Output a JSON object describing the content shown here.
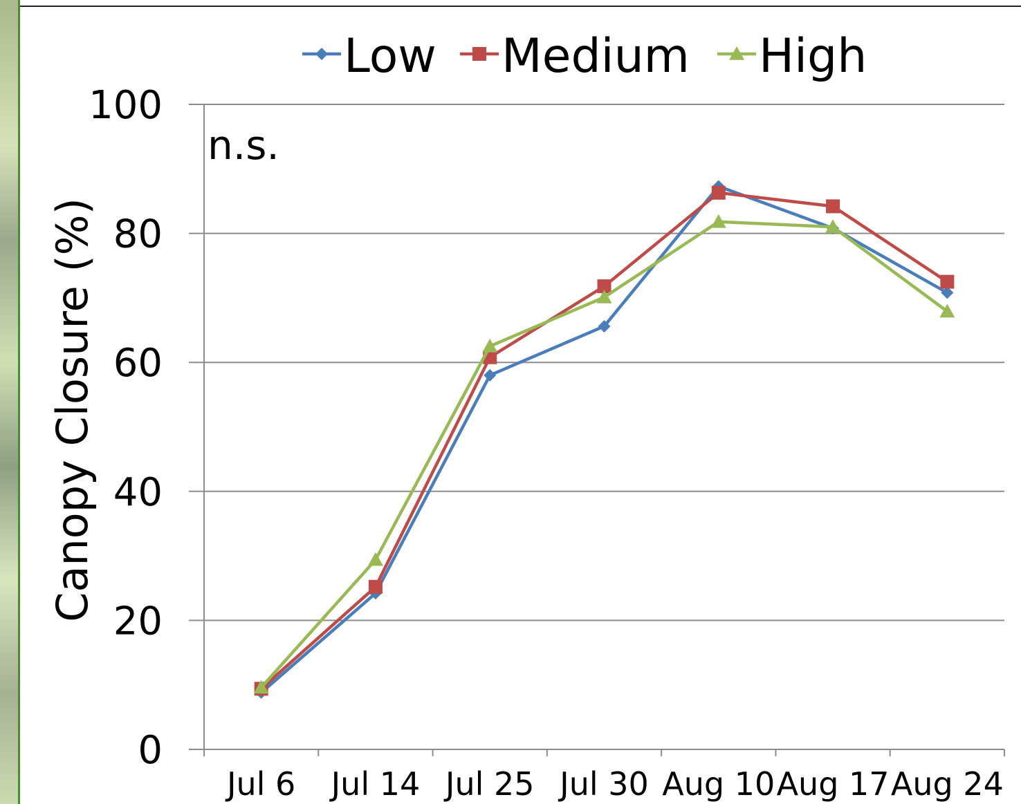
{
  "chart_data": {
    "type": "line",
    "categories": [
      "Jul 6",
      "Jul 14",
      "Jul 25",
      "Jul 30",
      "Aug 10",
      "Aug 17",
      "Aug 24"
    ],
    "series": [
      {
        "name": "Low",
        "color": "#4a7ebb",
        "marker": "diamond",
        "values": [
          8.8,
          24.2,
          58.0,
          65.6,
          87.3,
          80.8,
          70.8
        ]
      },
      {
        "name": "Medium",
        "color": "#be4b48",
        "marker": "square",
        "values": [
          9.4,
          25.2,
          60.8,
          71.8,
          86.3,
          84.2,
          72.5
        ]
      },
      {
        "name": "High",
        "color": "#98b954",
        "marker": "triangle",
        "values": [
          9.6,
          29.4,
          62.5,
          70.1,
          81.8,
          81.0,
          67.9
        ]
      }
    ],
    "ylabel": "Canopy Closure (%)",
    "ylim": [
      0,
      100
    ],
    "yticks": [
      "0",
      "20",
      "40",
      "60",
      "80",
      "100"
    ],
    "annotation": "n.s.",
    "legend": "top",
    "grid": true
  }
}
